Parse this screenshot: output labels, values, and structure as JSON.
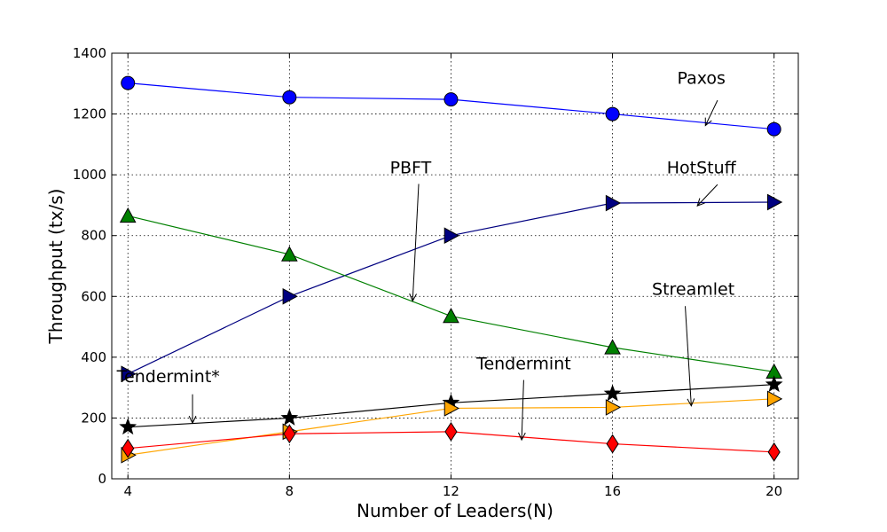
{
  "chart_data": {
    "type": "line",
    "title": "",
    "xlabel": "Number of Leaders(N)",
    "ylabel": "Throughput (tx/s)",
    "x": [
      4,
      8,
      12,
      16,
      20
    ],
    "xlim": [
      3.6,
      20.6
    ],
    "ylim": [
      0,
      1400
    ],
    "xticks": [
      "4",
      "8",
      "12",
      "16",
      "20"
    ],
    "yticks": [
      "0",
      "200",
      "400",
      "600",
      "800",
      "1000",
      "1200",
      "1400"
    ],
    "grid": true,
    "legend": "none",
    "series": [
      {
        "name": "Paxos",
        "color": "#0000ff",
        "marker": "circle",
        "values": [
          1302,
          1255,
          1248,
          1200,
          1150
        ]
      },
      {
        "name": "HotStuff",
        "color": "#000080",
        "marker": "triangle-right",
        "values": [
          345,
          600,
          800,
          907,
          910
        ]
      },
      {
        "name": "PBFT",
        "color": "#008000",
        "marker": "triangle-up",
        "values": [
          865,
          738,
          535,
          432,
          352
        ]
      },
      {
        "name": "Tendermint*",
        "color": "#000000",
        "marker": "star",
        "values": [
          170,
          200,
          250,
          280,
          310
        ]
      },
      {
        "name": "Streamlet",
        "color": "#ffa500",
        "marker": "triangle-right",
        "values": [
          78,
          155,
          232,
          235,
          263
        ]
      },
      {
        "name": "Tendermint",
        "color": "#ff0000",
        "marker": "diamond",
        "values": [
          100,
          148,
          155,
          115,
          88
        ]
      }
    ],
    "annotations": [
      {
        "text": "Paxos",
        "text_at": [
          18.2,
          1300
        ],
        "arrow_from": [
          18.6,
          1245
        ],
        "arrow_to": [
          18.3,
          1162
        ]
      },
      {
        "text": "HotStuff",
        "text_at": [
          18.2,
          1005
        ],
        "arrow_from": [
          18.6,
          968
        ],
        "arrow_to": [
          18.1,
          898
        ]
      },
      {
        "text": "PBFT",
        "text_at": [
          11.0,
          1005
        ],
        "arrow_from": [
          11.2,
          970
        ],
        "arrow_to": [
          11.05,
          585
        ]
      },
      {
        "text": "Streamlet",
        "text_at": [
          18.0,
          605
        ],
        "arrow_from": [
          17.8,
          568
        ],
        "arrow_to": [
          17.95,
          240
        ]
      },
      {
        "text": "Tendermint",
        "text_at": [
          13.8,
          360
        ],
        "arrow_from": [
          13.8,
          325
        ],
        "arrow_to": [
          13.75,
          128
        ]
      },
      {
        "text": "Tendermint*",
        "text_at": [
          5.0,
          318
        ],
        "arrow_from": [
          5.6,
          278
        ],
        "arrow_to": [
          5.6,
          183
        ]
      }
    ]
  }
}
